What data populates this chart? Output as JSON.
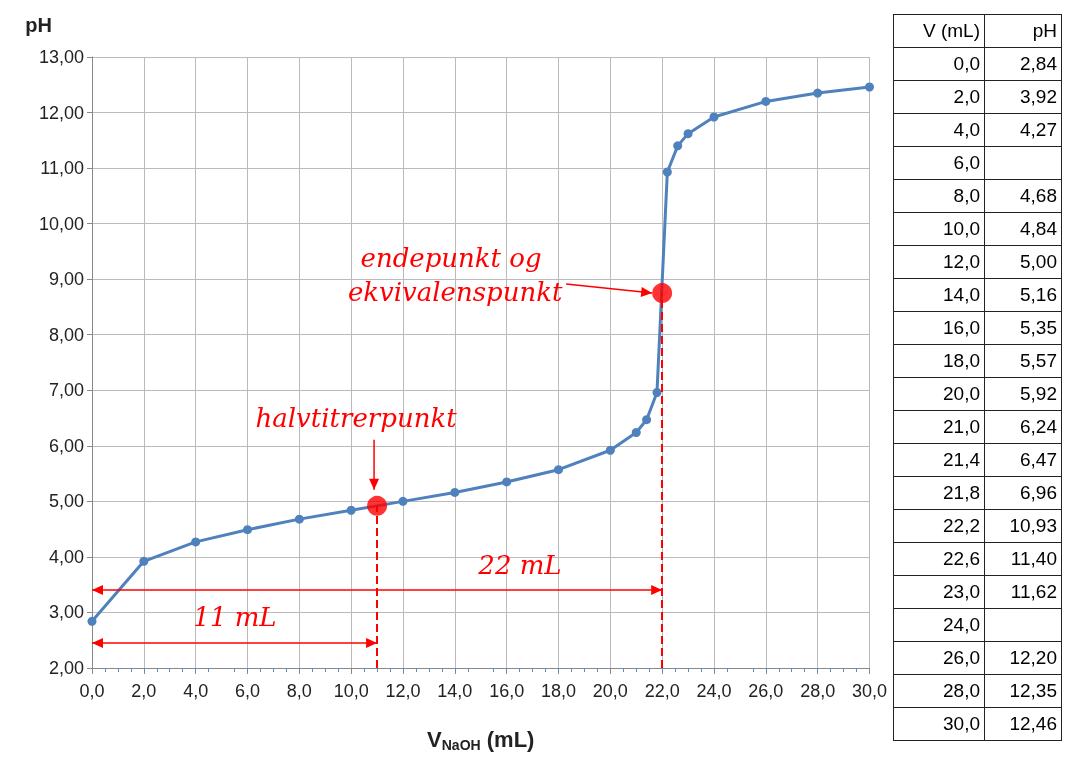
{
  "chart_data": [
    {
      "type": "line",
      "xlabel": "V$_{NaOH}$ (mL)",
      "ylabel": "pH",
      "xlim": [
        0,
        30
      ],
      "xticks": [
        {
          "value": 0,
          "label": "0,0"
        },
        {
          "value": 2,
          "label": "2,0"
        },
        {
          "value": 4,
          "label": "4,0"
        },
        {
          "value": 6,
          "label": "6,0"
        },
        {
          "value": 8,
          "label": "8,0"
        },
        {
          "value": 10,
          "label": "10,0"
        },
        {
          "value": 12,
          "label": "12,0"
        },
        {
          "value": 14,
          "label": "14,0"
        },
        {
          "value": 16,
          "label": "16,0"
        },
        {
          "value": 18,
          "label": "18,0"
        },
        {
          "value": 20,
          "label": "20,0"
        },
        {
          "value": 22,
          "label": "22,0"
        },
        {
          "value": 24,
          "label": "24,0"
        },
        {
          "value": 26,
          "label": "26,0"
        },
        {
          "value": 28,
          "label": "28,0"
        },
        {
          "value": 30,
          "label": "30,0"
        }
      ],
      "ylim": [
        2,
        13
      ],
      "yticks": [
        {
          "value": 2,
          "label": "2,00"
        },
        {
          "value": 3,
          "label": "3,00"
        },
        {
          "value": 4,
          "label": "4,00"
        },
        {
          "value": 5,
          "label": "5,00"
        },
        {
          "value": 6,
          "label": "6,00"
        },
        {
          "value": 7,
          "label": "7,00"
        },
        {
          "value": 8,
          "label": "8,00"
        },
        {
          "value": 9,
          "label": "9,00"
        },
        {
          "value": 10,
          "label": "10,00"
        },
        {
          "value": 11,
          "label": "11,00"
        },
        {
          "value": 12,
          "label": "12,00"
        },
        {
          "value": 13,
          "label": "13,00"
        }
      ],
      "grid": true,
      "marker": "circle",
      "line_style": "solid",
      "series": [
        {
          "color": "#4f81bd",
          "x": [
            0,
            2,
            4,
            6,
            8,
            10,
            12,
            14,
            16,
            18,
            20,
            21,
            21.4,
            21.8,
            22.2,
            22.6,
            23,
            24,
            26,
            28,
            30
          ],
          "values": [
            2.84,
            3.92,
            4.27,
            4.49,
            4.68,
            4.84,
            5.0,
            5.16,
            5.35,
            5.57,
            5.92,
            6.24,
            6.47,
            6.96,
            10.93,
            11.4,
            11.62,
            11.92,
            12.2,
            12.35,
            12.46
          ]
        },
        {
          "type": "scatter",
          "color": "#ff0000",
          "x": [
            11,
            22
          ],
          "values": [
            4.92,
            8.75
          ]
        }
      ],
      "ref_lines": [
        {
          "axis": "x",
          "value": 11,
          "label": null,
          "color": "#ff0000",
          "line_style": "dashed"
        },
        {
          "axis": "x",
          "value": 22,
          "label": null,
          "color": "#ff0000",
          "line_style": "dashed"
        }
      ],
      "annotations": [
        {
          "text": "halvtitrerpunkt",
          "x": 11,
          "y": 4.92
        },
        "endepunkt og ekvivalenspunkt",
        "22 mL",
        "11 mL"
      ]
    },
    {
      "type": "heatmap",
      "ylabel": "V (mL)",
      "categories": [
        "pH"
      ],
      "cell_labels": [
        [
          "2,84"
        ],
        [
          "3,92"
        ],
        [
          "4,27"
        ],
        [
          null
        ],
        [
          "4,68"
        ],
        [
          "4,84"
        ],
        [
          "5,00"
        ],
        [
          "5,16"
        ],
        [
          "5,35"
        ],
        [
          "5,57"
        ],
        [
          "5,92"
        ],
        [
          "6,24"
        ],
        [
          "6,47"
        ],
        [
          "6,96"
        ],
        [
          "10,93"
        ],
        [
          "11,40"
        ],
        [
          "11,62"
        ],
        [
          null
        ],
        [
          "12,20"
        ],
        [
          "12,35"
        ],
        [
          "12,46"
        ]
      ],
      "y_categories": [
        "0,0",
        "2,0",
        "4,0",
        "6,0",
        "8,0",
        "10,0",
        "12,0",
        "14,0",
        "16,0",
        "18,0",
        "20,0",
        "21,0",
        "21,4",
        "21,8",
        "22,2",
        "22,6",
        "23,0",
        "24,0",
        "26,0",
        "28,0",
        "30,0"
      ],
      "cells": [
        [
          2.84
        ],
        [
          3.92
        ],
        [
          4.27
        ],
        [
          null
        ],
        [
          4.68
        ],
        [
          4.84
        ],
        [
          5.0
        ],
        [
          5.16
        ],
        [
          5.35
        ],
        [
          5.57
        ],
        [
          5.92
        ],
        [
          6.24
        ],
        [
          6.47
        ],
        [
          6.96
        ],
        [
          10.93
        ],
        [
          11.4
        ],
        [
          11.62
        ],
        [
          null
        ],
        [
          12.2
        ],
        [
          12.35
        ],
        [
          12.46
        ]
      ]
    }
  ]
}
